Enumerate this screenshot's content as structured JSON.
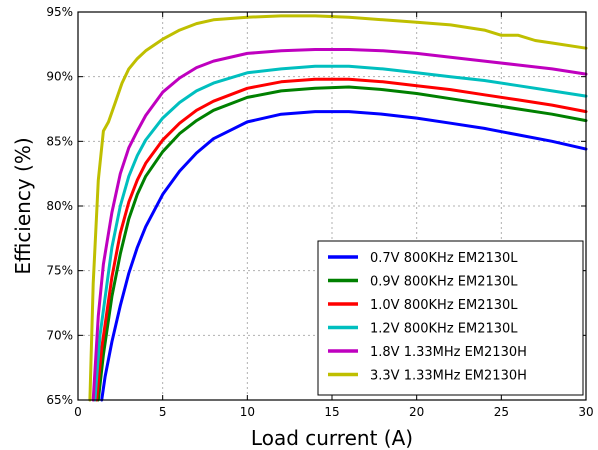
{
  "chart_data": {
    "type": "line",
    "xlabel": "Load current (A)",
    "ylabel": "Efficiency (%)",
    "xlim": [
      0,
      30
    ],
    "ylim": [
      65,
      95
    ],
    "xticks": [
      0,
      5,
      10,
      15,
      20,
      25,
      30
    ],
    "yticks": [
      65,
      70,
      75,
      80,
      85,
      90,
      95
    ],
    "xtick_labels": [
      "0",
      "5",
      "10",
      "15",
      "20",
      "25",
      "30"
    ],
    "ytick_labels": [
      "65%",
      "70%",
      "75%",
      "80%",
      "85%",
      "90%",
      "95%"
    ],
    "grid": true,
    "legend_position": "lower-right",
    "series": [
      {
        "name": "0.7V 800KHz EM2130L",
        "color": "#0000ff",
        "x": [
          1.4,
          1.6,
          2,
          2.5,
          3,
          3.5,
          4,
          5,
          6,
          7,
          8,
          10,
          12,
          14,
          16,
          18,
          20,
          22,
          24,
          26,
          28,
          30
        ],
        "y": [
          65,
          66.8,
          69.5,
          72.3,
          74.8,
          76.8,
          78.4,
          80.9,
          82.7,
          84.1,
          85.2,
          86.5,
          87.1,
          87.3,
          87.3,
          87.1,
          86.8,
          86.4,
          86.0,
          85.5,
          85.0,
          84.4
        ]
      },
      {
        "name": "0.9V 800KHz EM2130L",
        "color": "#008000",
        "x": [
          1.2,
          1.5,
          2,
          2.5,
          3,
          3.5,
          4,
          5,
          6,
          7,
          8,
          10,
          12,
          14,
          16,
          18,
          20,
          22,
          24,
          26,
          28,
          30
        ],
        "y": [
          65,
          68.5,
          73,
          76.3,
          79,
          80.9,
          82.3,
          84.2,
          85.6,
          86.6,
          87.4,
          88.4,
          88.9,
          89.1,
          89.2,
          89.0,
          88.7,
          88.3,
          87.9,
          87.5,
          87.1,
          86.6
        ]
      },
      {
        "name": "1.0V 800KHz EM2130L",
        "color": "#ff0000",
        "x": [
          1.1,
          1.4,
          2,
          2.5,
          3,
          3.5,
          4,
          5,
          6,
          7,
          8,
          10,
          12,
          14,
          16,
          18,
          20,
          22,
          24,
          26,
          28,
          30
        ],
        "y": [
          65,
          69,
          74.5,
          77.9,
          80.3,
          82.0,
          83.3,
          85.1,
          86.4,
          87.4,
          88.1,
          89.1,
          89.6,
          89.8,
          89.8,
          89.6,
          89.3,
          89.0,
          88.6,
          88.2,
          87.8,
          87.3
        ]
      },
      {
        "name": "1.2V 800KHz EM2130L",
        "color": "#00bfbf",
        "x": [
          1.0,
          1.3,
          2,
          2.5,
          3,
          3.5,
          4,
          5,
          6,
          7,
          8,
          10,
          12,
          14,
          16,
          18,
          20,
          22,
          24,
          26,
          28,
          30
        ],
        "y": [
          65,
          70,
          76.8,
          80.0,
          82.3,
          83.9,
          85.1,
          86.8,
          88.0,
          88.9,
          89.5,
          90.3,
          90.6,
          90.8,
          90.8,
          90.6,
          90.3,
          90.0,
          89.7,
          89.3,
          88.9,
          88.5
        ]
      },
      {
        "name": "1.8V 1.33MHz EM2130H",
        "color": "#bf00bf",
        "x": [
          0.9,
          1.2,
          1.5,
          2,
          2.5,
          3,
          3.5,
          4,
          5,
          6,
          7,
          8,
          10,
          12,
          14,
          16,
          18,
          20,
          22,
          24,
          26,
          28,
          30
        ],
        "y": [
          65,
          71.5,
          75.5,
          79.5,
          82.5,
          84.5,
          85.8,
          87.0,
          88.8,
          89.9,
          90.7,
          91.2,
          91.8,
          92.0,
          92.1,
          92.1,
          92.0,
          91.8,
          91.5,
          91.2,
          90.9,
          90.6,
          90.2
        ]
      },
      {
        "name": "3.3V 1.33MHz EM2130H",
        "color": "#bfbf00",
        "x": [
          0.7,
          0.9,
          1.2,
          1.5,
          1.8,
          2.2,
          2.6,
          3,
          3.5,
          4,
          5,
          6,
          7,
          8,
          10,
          12,
          14,
          16,
          18,
          20,
          22,
          24,
          25,
          26,
          27,
          28,
          30
        ],
        "y": [
          65,
          74,
          82,
          85.8,
          86.5,
          88.0,
          89.5,
          90.6,
          91.4,
          92.0,
          92.9,
          93.6,
          94.1,
          94.4,
          94.6,
          94.7,
          94.7,
          94.6,
          94.4,
          94.2,
          94.0,
          93.6,
          93.2,
          93.2,
          92.8,
          92.6,
          92.2
        ]
      }
    ]
  }
}
